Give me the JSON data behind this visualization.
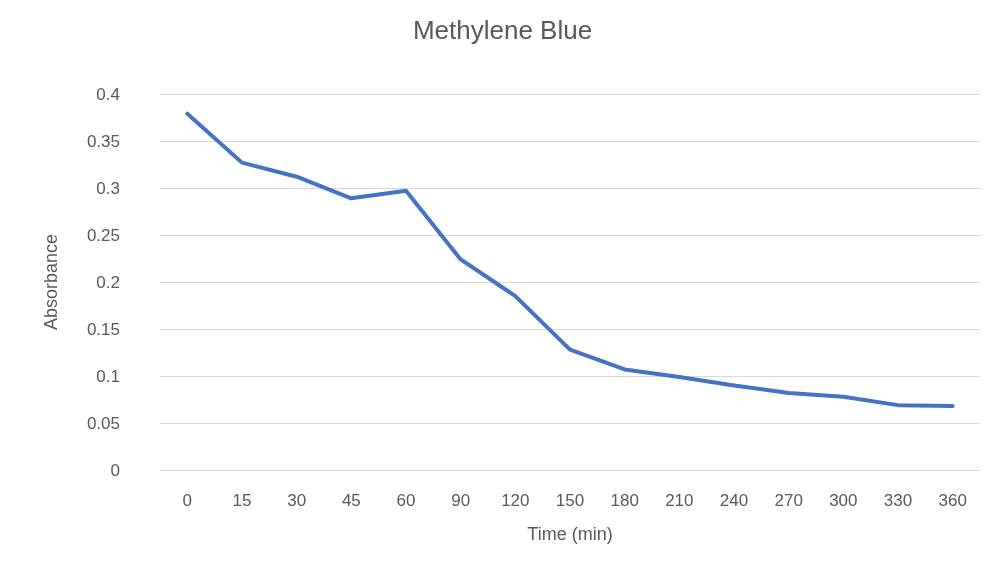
{
  "chart_data": {
    "type": "line",
    "title": "Methylene Blue",
    "xlabel": "Time (min)",
    "ylabel": "Absorbance",
    "categories": [
      "0",
      "15",
      "30",
      "45",
      "60",
      "90",
      "120",
      "150",
      "180",
      "210",
      "240",
      "270",
      "300",
      "330",
      "360"
    ],
    "series": [
      {
        "color": "#4472c4",
        "values": [
          0.379,
          0.327,
          0.312,
          0.289,
          0.297,
          0.224,
          0.185,
          0.128,
          0.107,
          0.099,
          0.09,
          0.082,
          0.078,
          0.069,
          0.068
        ]
      }
    ],
    "ylim": [
      0,
      0.4
    ],
    "yticks": [
      0,
      0.05,
      0.1,
      0.15,
      0.2,
      0.25,
      0.3,
      0.35,
      0.4
    ],
    "grid": "y",
    "marker": "none",
    "line_style": "solid"
  }
}
